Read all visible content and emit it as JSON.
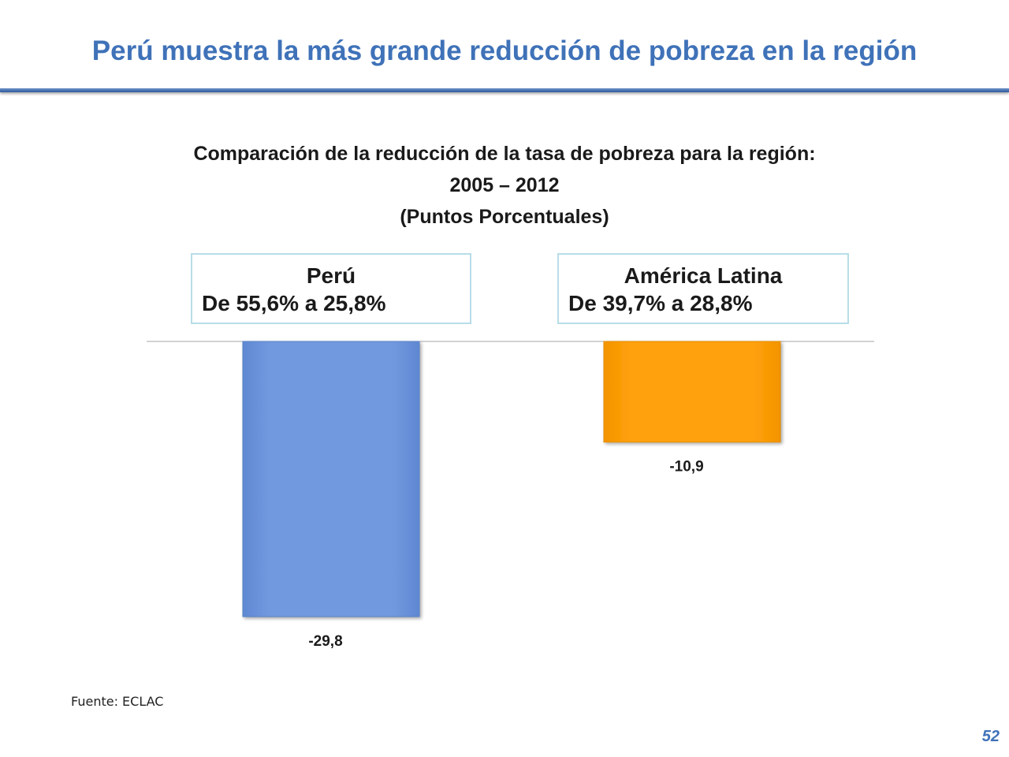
{
  "slide": {
    "title": "Perú muestra la más grande reducción de pobreza en la región",
    "source": "Fuente: ECLAC",
    "page_number": "52"
  },
  "boxes": [
    {
      "name": "Perú",
      "range": "De 55,6% a 25,8%"
    },
    {
      "name": "América Latina",
      "range": "De 39,7% a 28,8%"
    }
  ],
  "colors": {
    "title": "#3f72b8",
    "bar_peru": "#7199df",
    "bar_latam": "#ffa10a",
    "box_border": "#b7dde8"
  },
  "chart_data": {
    "type": "bar",
    "title": "Comparación de la reducción de la tasa de pobreza para la región:",
    "subtitle": "2005 – 2012",
    "unit_label": "(Puntos Porcentuales)",
    "categories": [
      "Perú",
      "América Latina"
    ],
    "values": [
      -29.8,
      -10.9
    ],
    "value_labels": [
      "-29,8",
      "-10,9"
    ],
    "ylim": [
      -29.8,
      0
    ],
    "grid": false,
    "legend": "none"
  }
}
